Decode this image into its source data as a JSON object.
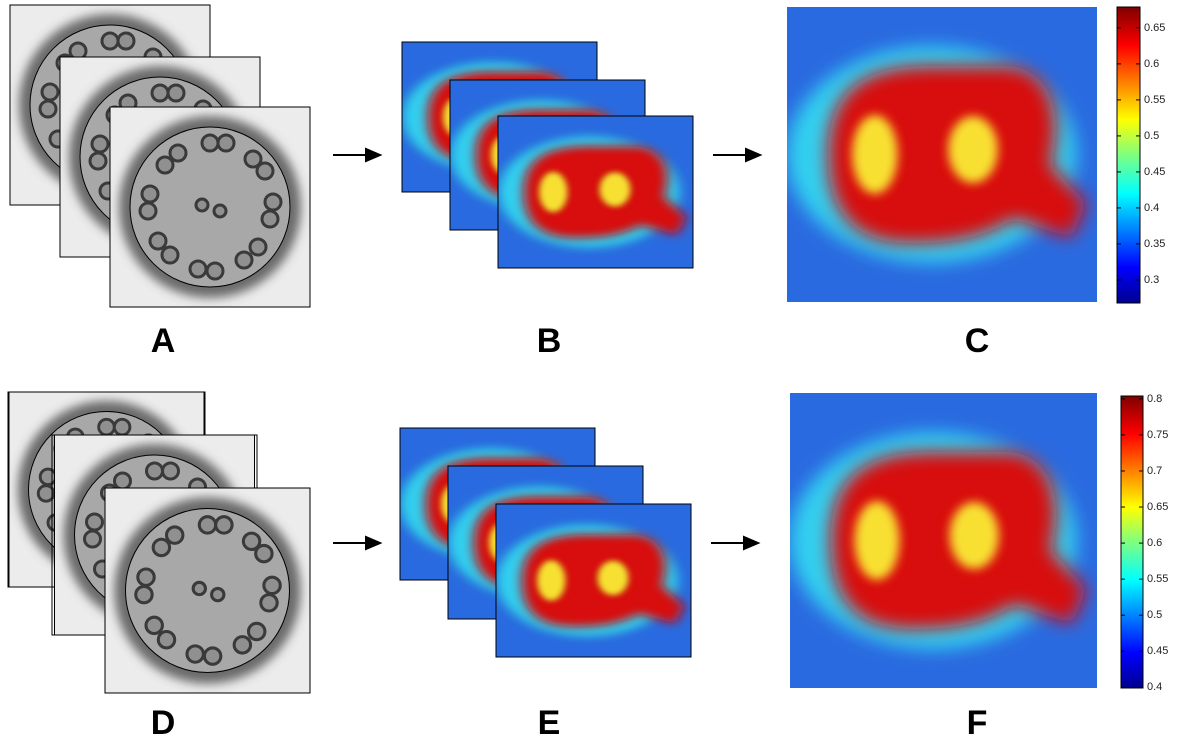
{
  "panel_labels": [
    "A",
    "B",
    "C",
    "D",
    "E",
    "F"
  ],
  "colorbars": [
    {
      "lim": [
        0.268,
        0.679
      ],
      "ticks": [
        0.3,
        0.35,
        0.4,
        0.45,
        0.5,
        0.55,
        0.6,
        0.65
      ]
    },
    {
      "lim": [
        0.399,
        0.804
      ],
      "ticks": [
        0.4,
        0.45,
        0.5,
        0.55,
        0.6,
        0.65,
        0.7,
        0.75,
        0.8
      ]
    }
  ]
}
